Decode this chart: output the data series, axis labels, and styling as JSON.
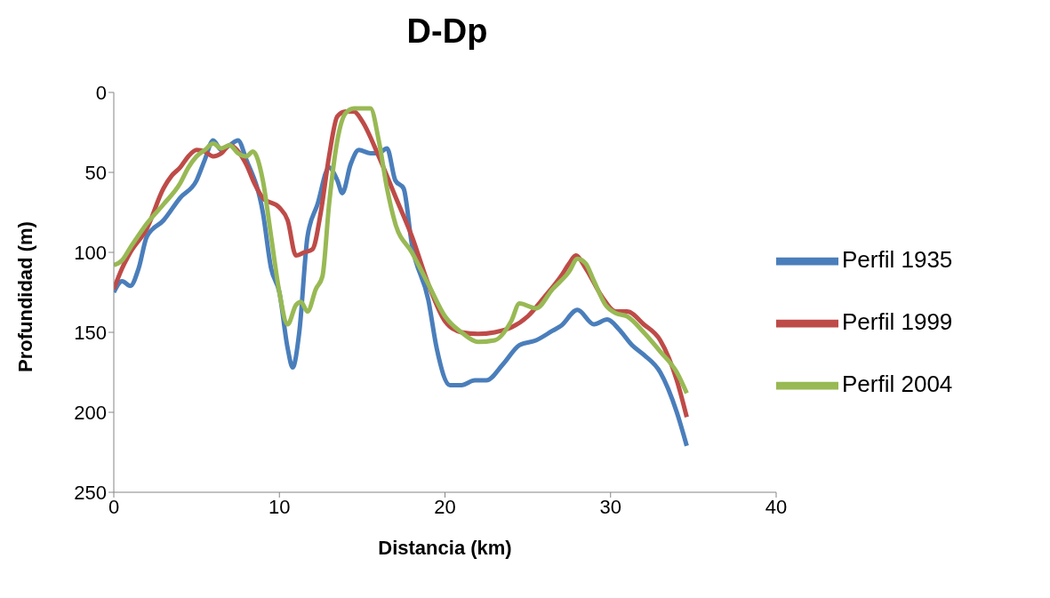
{
  "chart_data": {
    "type": "line",
    "title": "D-Dp",
    "xlabel": "Distancia (km)",
    "ylabel": "Profundidad (m)",
    "xlim": [
      0,
      40
    ],
    "xticks": [
      0,
      10,
      20,
      30,
      40
    ],
    "ylim": [
      250,
      0
    ],
    "yticks": [
      0,
      50,
      100,
      150,
      200,
      250
    ],
    "legend": "right",
    "marker": "none",
    "line_style": "solid",
    "series": [
      {
        "name": "Perfil 1935",
        "color": "#4a7ebb",
        "x": [
          0,
          0.5,
          1,
          1.5,
          2,
          3,
          4,
          5,
          5.5,
          6,
          6.5,
          7,
          7.5,
          8,
          9,
          9.5,
          10,
          10.5,
          10.8,
          11.2,
          11.7,
          12.3,
          13,
          13.5,
          13.8,
          14.3,
          14.8,
          15.5,
          16,
          16.5,
          17,
          17.5,
          18,
          19,
          19.5,
          20.3,
          21,
          21.8,
          22.5,
          23.5,
          24.5,
          25.5,
          26.5,
          27,
          28,
          29,
          29.8,
          30.5,
          31.3,
          32,
          33,
          34,
          34.6
        ],
        "values": [
          125,
          118,
          121,
          110,
          90,
          80,
          66,
          55,
          42,
          30,
          36,
          33,
          30,
          42,
          75,
          110,
          125,
          160,
          172,
          150,
          90,
          70,
          47,
          55,
          63,
          45,
          36,
          38,
          38,
          35,
          55,
          60,
          95,
          130,
          160,
          183,
          183,
          180,
          180,
          170,
          158,
          155,
          149,
          146,
          136,
          145,
          142,
          148,
          158,
          164,
          175,
          200,
          221
        ]
      },
      {
        "name": "Perfil 1999",
        "color": "#be4b48",
        "x": [
          0,
          0.5,
          1,
          2,
          3,
          3.5,
          4,
          4.5,
          5,
          5.5,
          6,
          6.5,
          7,
          8,
          8.5,
          9,
          10,
          10.5,
          11,
          11.5,
          12,
          12.5,
          13,
          13.5,
          14,
          14.5,
          15,
          16,
          17,
          18,
          19,
          20,
          21,
          22,
          23,
          24,
          25,
          26,
          27,
          27.5,
          27.9,
          28.5,
          29.5,
          30.3,
          31,
          32,
          33,
          34,
          34.6
        ],
        "values": [
          123,
          110,
          100,
          85,
          60,
          52,
          47,
          40,
          36,
          37,
          40,
          38,
          33,
          45,
          57,
          66,
          72,
          80,
          102,
          100,
          98,
          75,
          40,
          15,
          12,
          12,
          18,
          40,
          65,
          90,
          120,
          143,
          150,
          151,
          150,
          147,
          140,
          128,
          115,
          107,
          102,
          110,
          128,
          137,
          137,
          145,
          155,
          180,
          203
        ]
      },
      {
        "name": "Perfil 2004",
        "color": "#98b954",
        "x": [
          0,
          0.5,
          1,
          2,
          3,
          4,
          4.5,
          5,
          5.5,
          6,
          6.5,
          7,
          7.5,
          8,
          8.4,
          9,
          9.5,
          10,
          10.5,
          11,
          11.3,
          11.7,
          12.2,
          12.6,
          13,
          13.5,
          14,
          14.5,
          15,
          15.5,
          16,
          16.5,
          17,
          18,
          19,
          20,
          21,
          22,
          23,
          24,
          24.5,
          25.5,
          26.5,
          27.5,
          28,
          28.5,
          29,
          29.7,
          30.3,
          31,
          32,
          33,
          34,
          34.6
        ],
        "values": [
          108,
          105,
          97,
          82,
          70,
          57,
          47,
          40,
          36,
          32,
          35,
          33,
          38,
          40,
          37,
          55,
          90,
          125,
          145,
          133,
          131,
          137,
          123,
          115,
          70,
          30,
          13,
          10,
          10,
          10,
          30,
          60,
          82,
          100,
          120,
          140,
          150,
          156,
          155,
          143,
          132,
          135,
          123,
          112,
          104,
          107,
          118,
          133,
          138,
          140,
          150,
          162,
          175,
          188
        ]
      }
    ]
  }
}
